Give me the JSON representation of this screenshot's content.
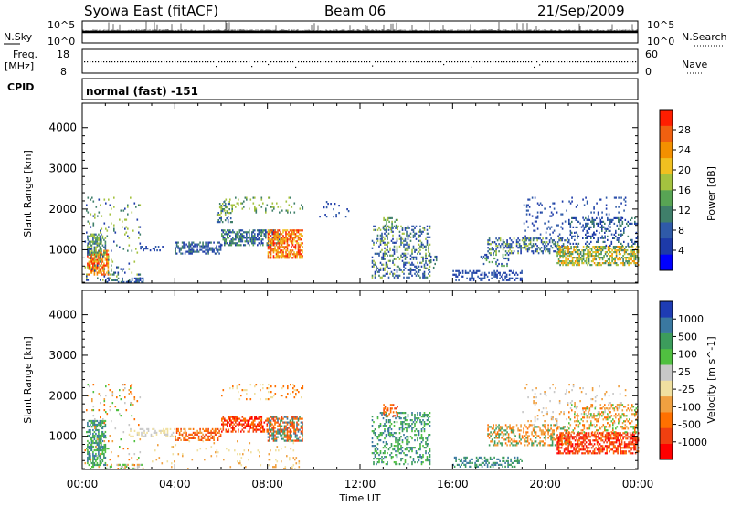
{
  "header": {
    "station": "Syowa East (fitACF)",
    "beam": "Beam 06",
    "date": "21/Sep/2009"
  },
  "top_panels": {
    "nsky_label": "N.Sky",
    "nsky_top": "10^5",
    "nsky_bottom": "10^0",
    "nsearch_label": "N.Search",
    "nsearch_top": "10^5",
    "nsearch_bottom": "10^0",
    "freq_label_1": "Freq.",
    "freq_label_2": "[MHz]",
    "freq_top": "18",
    "freq_bottom": "8",
    "nave_label": "Nave",
    "nave_top": "60",
    "nave_bottom": "0",
    "cpid_label": "CPID",
    "cpid_value": "normal (fast) -151"
  },
  "chart_data": [
    {
      "type": "heatmap",
      "parameter": "Power",
      "ylabel": "Slant Range [km]",
      "colorbar_label": "Power [dB]",
      "ylim": [
        180,
        4600
      ],
      "y_ticks": [
        "1000",
        "2000",
        "3000",
        "4000"
      ],
      "y_tick_values": [
        1000,
        2000,
        3000,
        4000
      ],
      "xlim_hours": [
        0,
        24
      ],
      "colorbar_ticks": [
        "28",
        "24",
        "20",
        "16",
        "12",
        "8",
        "4"
      ],
      "colorbar_colors": [
        "#0000ff",
        "#1d3aa8",
        "#2f5aa8",
        "#3f7f6a",
        "#58a454",
        "#a4c23f",
        "#f0c020",
        "#f39000",
        "#f06010",
        "#ff1e00"
      ],
      "scatter_regions": [
        {
          "t0": 0.2,
          "t1": 1.1,
          "r0": 400,
          "r1": 1000,
          "c": [
            6,
            7,
            8,
            9
          ],
          "d": 0.7
        },
        {
          "t0": 0.2,
          "t1": 1.0,
          "r0": 900,
          "r1": 1400,
          "c": [
            2,
            3,
            4,
            5
          ],
          "d": 0.6
        },
        {
          "t0": 0.1,
          "t1": 2.5,
          "r0": 200,
          "r1": 2300,
          "c": [
            1,
            3,
            5
          ],
          "d": 0.08
        },
        {
          "t0": 1.0,
          "t1": 2.6,
          "r0": 200,
          "r1": 320,
          "c": [
            1,
            2,
            3
          ],
          "d": 0.5
        },
        {
          "t0": 2.5,
          "t1": 3.5,
          "r0": 1000,
          "r1": 1100,
          "c": [
            1,
            2
          ],
          "d": 0.4
        },
        {
          "t0": 4.0,
          "t1": 6.0,
          "r0": 900,
          "r1": 1200,
          "c": [
            1,
            2,
            3
          ],
          "d": 0.5
        },
        {
          "t0": 5.8,
          "t1": 6.5,
          "r0": 1700,
          "r1": 2200,
          "c": [
            2,
            3,
            5
          ],
          "d": 0.35
        },
        {
          "t0": 6.0,
          "t1": 8.5,
          "r0": 1100,
          "r1": 1500,
          "c": [
            1,
            2,
            3,
            4
          ],
          "d": 0.55
        },
        {
          "t0": 8.0,
          "t1": 9.5,
          "r0": 800,
          "r1": 1500,
          "c": [
            6,
            7,
            8,
            9
          ],
          "d": 0.65
        },
        {
          "t0": 6.0,
          "t1": 9.5,
          "r0": 1900,
          "r1": 2300,
          "c": [
            3,
            5
          ],
          "d": 0.12
        },
        {
          "t0": 10.0,
          "t1": 11.5,
          "r0": 1800,
          "r1": 2200,
          "c": [
            1,
            2
          ],
          "d": 0.06
        },
        {
          "t0": 12.5,
          "t1": 15.0,
          "r0": 300,
          "r1": 1600,
          "c": [
            1,
            2,
            3,
            5
          ],
          "d": 0.3
        },
        {
          "t0": 13.0,
          "t1": 13.6,
          "r0": 1500,
          "r1": 1800,
          "c": [
            3,
            4,
            5
          ],
          "d": 0.4
        },
        {
          "t0": 14.8,
          "t1": 15.3,
          "r0": 500,
          "r1": 900,
          "c": [
            1,
            3
          ],
          "d": 0.2
        },
        {
          "t0": 16.0,
          "t1": 19.0,
          "r0": 250,
          "r1": 500,
          "c": [
            1,
            2
          ],
          "d": 0.35
        },
        {
          "t0": 17.2,
          "t1": 18.5,
          "r0": 600,
          "r1": 900,
          "c": [
            1,
            2,
            4
          ],
          "d": 0.3
        },
        {
          "t0": 17.5,
          "t1": 21.0,
          "r0": 900,
          "r1": 1300,
          "c": [
            1,
            2,
            3,
            5
          ],
          "d": 0.4
        },
        {
          "t0": 19.0,
          "t1": 23.5,
          "r0": 1300,
          "r1": 2300,
          "c": [
            1,
            2
          ],
          "d": 0.08
        },
        {
          "t0": 20.5,
          "t1": 24.0,
          "r0": 650,
          "r1": 1100,
          "c": [
            3,
            4,
            5,
            6,
            7
          ],
          "d": 0.6
        },
        {
          "t0": 21.0,
          "t1": 24.0,
          "r0": 1100,
          "r1": 1800,
          "c": [
            1,
            2,
            3
          ],
          "d": 0.25
        }
      ]
    },
    {
      "type": "heatmap",
      "parameter": "Velocity",
      "ylabel": "Slant Range [km]",
      "colorbar_label": "Velocity [m s^-1]",
      "ylim": [
        180,
        4600
      ],
      "y_ticks": [
        "1000",
        "2000",
        "3000",
        "4000"
      ],
      "y_tick_values": [
        1000,
        2000,
        3000,
        4000
      ],
      "xlim_hours": [
        0,
        24
      ],
      "colorbar_ticks": [
        "1000",
        "500",
        "100",
        "25",
        "-25",
        "-100",
        "-500",
        "-1000"
      ],
      "colorbar_colors": [
        "#ff0000",
        "#f04010",
        "#ff7000",
        "#f0a040",
        "#f0e0a0",
        "#c8c8c8",
        "#50c040",
        "#3c9c5c",
        "#3a78a0",
        "#1e3cb4"
      ],
      "scatter_regions": [
        {
          "t0": 0.2,
          "t1": 1.0,
          "r0": 300,
          "r1": 1400,
          "c": [
            6,
            7,
            8
          ],
          "d": 0.6
        },
        {
          "t0": 0.1,
          "t1": 2.5,
          "r0": 200,
          "r1": 2300,
          "c": [
            2,
            3,
            5,
            6
          ],
          "d": 0.07
        },
        {
          "t0": 1.0,
          "t1": 2.6,
          "r0": 200,
          "r1": 320,
          "c": [
            3,
            5,
            6
          ],
          "d": 0.4
        },
        {
          "t0": 2.0,
          "t1": 4.0,
          "r0": 1000,
          "r1": 1200,
          "c": [
            5,
            4
          ],
          "d": 0.3
        },
        {
          "t0": 4.0,
          "t1": 6.0,
          "r0": 900,
          "r1": 1200,
          "c": [
            1,
            2,
            3
          ],
          "d": 0.45
        },
        {
          "t0": 6.0,
          "t1": 8.0,
          "r0": 1100,
          "r1": 1500,
          "c": [
            0,
            1,
            2
          ],
          "d": 0.55
        },
        {
          "t0": 8.0,
          "t1": 9.5,
          "r0": 900,
          "r1": 1500,
          "c": [
            1,
            2,
            7,
            8
          ],
          "d": 0.6
        },
        {
          "t0": 3.0,
          "t1": 9.5,
          "r0": 200,
          "r1": 900,
          "c": [
            3,
            4
          ],
          "d": 0.05
        },
        {
          "t0": 6.0,
          "t1": 9.5,
          "r0": 1900,
          "r1": 2300,
          "c": [
            2,
            4
          ],
          "d": 0.1
        },
        {
          "t0": 12.5,
          "t1": 15.0,
          "r0": 300,
          "r1": 1600,
          "c": [
            6,
            7,
            8
          ],
          "d": 0.3
        },
        {
          "t0": 13.0,
          "t1": 13.6,
          "r0": 1500,
          "r1": 1800,
          "c": [
            1,
            2
          ],
          "d": 0.4
        },
        {
          "t0": 16.0,
          "t1": 19.0,
          "r0": 250,
          "r1": 500,
          "c": [
            7,
            8
          ],
          "d": 0.35
        },
        {
          "t0": 17.5,
          "t1": 21.0,
          "r0": 800,
          "r1": 1300,
          "c": [
            2,
            3,
            7
          ],
          "d": 0.4
        },
        {
          "t0": 19.0,
          "t1": 23.5,
          "r0": 1300,
          "r1": 2300,
          "c": [
            3,
            5
          ],
          "d": 0.07
        },
        {
          "t0": 20.5,
          "t1": 24.0,
          "r0": 600,
          "r1": 1100,
          "c": [
            0,
            1,
            2
          ],
          "d": 0.6
        },
        {
          "t0": 21.0,
          "t1": 24.0,
          "r0": 1100,
          "r1": 1800,
          "c": [
            2,
            3,
            6
          ],
          "d": 0.25
        }
      ]
    }
  ],
  "x_axis": {
    "label": "Time UT",
    "ticks": [
      "00:00",
      "04:00",
      "08:00",
      "12:00",
      "16:00",
      "20:00",
      "00:00"
    ],
    "tick_hours": [
      0,
      4,
      8,
      12,
      16,
      20,
      24
    ]
  }
}
